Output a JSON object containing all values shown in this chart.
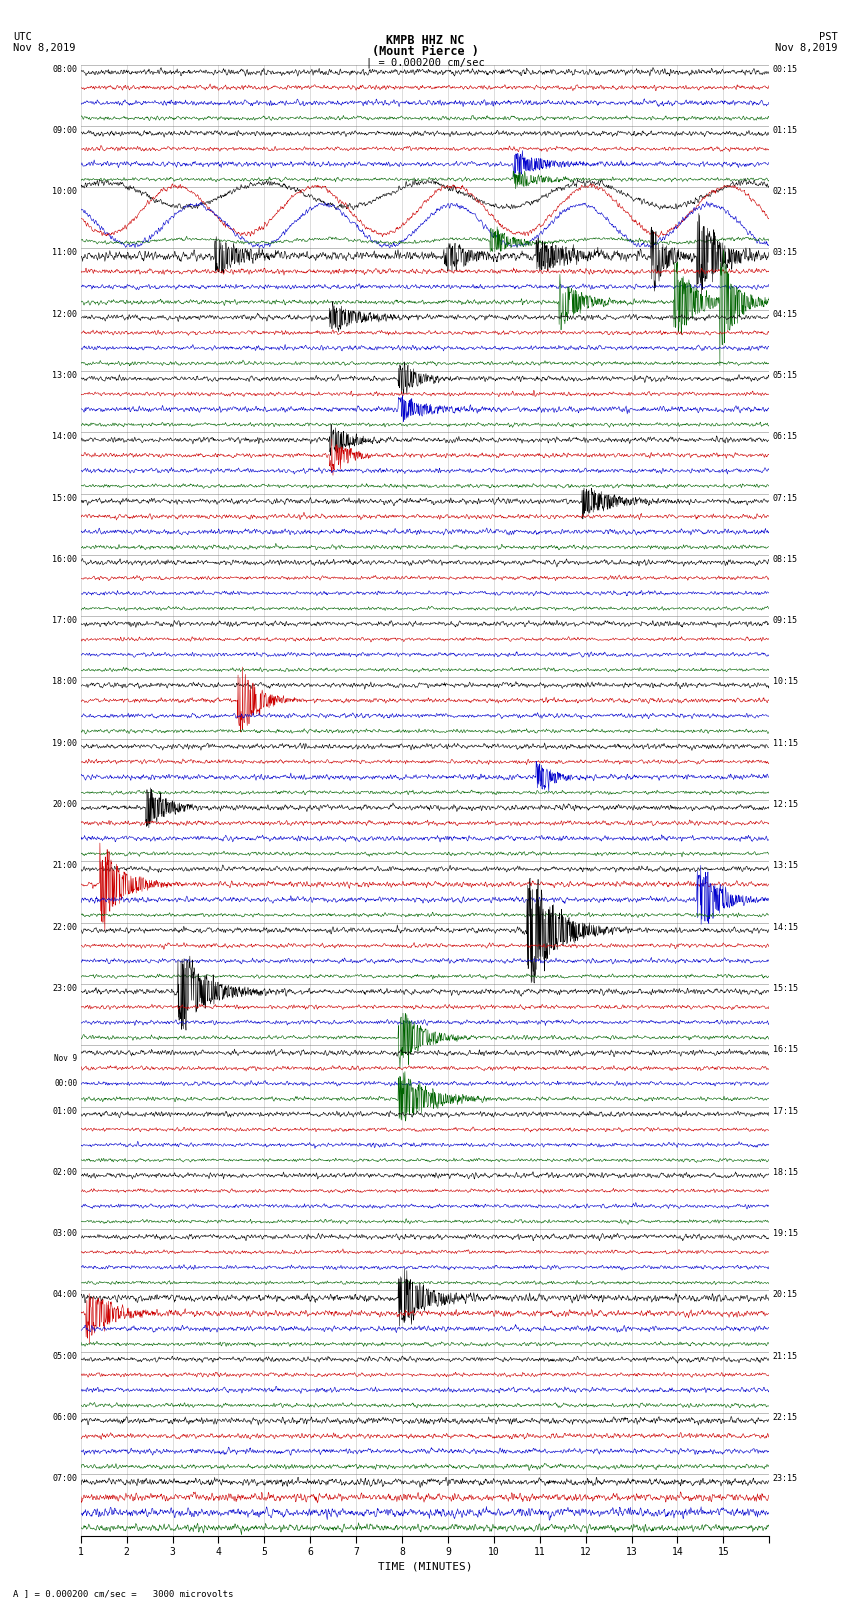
{
  "title_line1": "KMPB HHZ NC",
  "title_line2": "(Mount Pierce )",
  "scale_text": "| = 0.000200 cm/sec",
  "footer_label": "A ] = 0.000200 cm/sec =   3000 microvolts",
  "xlabel": "TIME (MINUTES)",
  "utc_label": "UTC",
  "utc_date": "Nov 8,2019",
  "pst_label": "PST",
  "pst_date": "Nov 8,2019",
  "background_color": "#ffffff",
  "trace_colors": [
    "#000000",
    "#cc0000",
    "#0000cc",
    "#006400"
  ],
  "left_times": [
    "08:00",
    "09:00",
    "10:00",
    "11:00",
    "12:00",
    "13:00",
    "14:00",
    "15:00",
    "16:00",
    "17:00",
    "18:00",
    "19:00",
    "20:00",
    "21:00",
    "22:00",
    "23:00",
    "Nov 9\n00:00",
    "01:00",
    "02:00",
    "03:00",
    "04:00",
    "05:00",
    "06:00",
    "07:00"
  ],
  "right_times": [
    "00:15",
    "01:15",
    "02:15",
    "03:15",
    "04:15",
    "05:15",
    "06:15",
    "07:15",
    "08:15",
    "09:15",
    "10:15",
    "11:15",
    "12:15",
    "13:15",
    "14:15",
    "15:15",
    "16:15",
    "17:15",
    "18:15",
    "19:15",
    "20:15",
    "21:15",
    "22:15",
    "23:15"
  ],
  "num_hour_blocks": 24,
  "traces_per_block": 4,
  "fig_width": 8.5,
  "fig_height": 16.13,
  "dpi": 100,
  "minutes": 15,
  "n_points": 1800,
  "grid_color": "#888888",
  "grid_minute_interval": 1
}
